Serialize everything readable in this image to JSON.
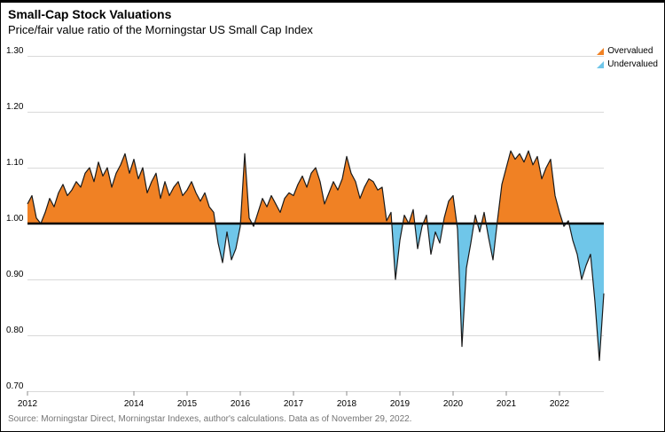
{
  "title": "Small-Cap Stock Valuations",
  "subtitle": "Price/fair value ratio of the Morningstar US Small Cap Index",
  "source": "Source: Morningstar Direct, Morningstar Indexes, author's calculations. Data as of November 29, 2022.",
  "chart_data": {
    "type": "area",
    "title": "Small-Cap Stock Valuations",
    "subtitle": "Price/fair value ratio of the Morningstar US Small Cap Index",
    "baseline": 1.0,
    "ylim": [
      0.7,
      1.3
    ],
    "yticks": [
      0.7,
      0.8,
      0.9,
      1.0,
      1.1,
      1.2,
      1.3
    ],
    "x_start_year": 2012,
    "x_points_per_year": 12,
    "x_tick_years": [
      2012,
      2014,
      2015,
      2016,
      2017,
      2018,
      2019,
      2020,
      2021,
      2022
    ],
    "grid": true,
    "legend_position": "top-right",
    "legend": [
      {
        "label": "Overvalued",
        "color": "#F08124"
      },
      {
        "label": "Undervalued",
        "color": "#6FC6E9"
      }
    ],
    "colors": {
      "overvalued": "#F08124",
      "undervalued": "#6FC6E9",
      "line": "#1a1a1a",
      "baseline": "#000000",
      "grid": "#d9d9d9",
      "tick": "#8c8c8c"
    },
    "series": [
      {
        "name": "Price/fair value ratio",
        "values": [
          1.035,
          1.05,
          1.01,
          1.0,
          1.02,
          1.045,
          1.03,
          1.055,
          1.07,
          1.05,
          1.06,
          1.075,
          1.065,
          1.09,
          1.1,
          1.075,
          1.11,
          1.085,
          1.1,
          1.065,
          1.09,
          1.105,
          1.125,
          1.09,
          1.115,
          1.08,
          1.1,
          1.055,
          1.075,
          1.09,
          1.045,
          1.075,
          1.05,
          1.065,
          1.075,
          1.05,
          1.06,
          1.075,
          1.055,
          1.04,
          1.055,
          1.03,
          1.02,
          0.965,
          0.93,
          0.985,
          0.935,
          0.955,
          0.995,
          1.125,
          1.01,
          0.995,
          1.02,
          1.045,
          1.03,
          1.05,
          1.035,
          1.02,
          1.045,
          1.055,
          1.05,
          1.07,
          1.085,
          1.065,
          1.09,
          1.1,
          1.075,
          1.035,
          1.055,
          1.075,
          1.06,
          1.08,
          1.12,
          1.09,
          1.075,
          1.045,
          1.065,
          1.08,
          1.075,
          1.06,
          1.065,
          1.005,
          1.02,
          0.9,
          0.97,
          1.015,
          1.0,
          1.025,
          0.955,
          0.995,
          1.015,
          0.945,
          0.985,
          0.965,
          1.01,
          1.04,
          1.05,
          0.99,
          0.78,
          0.92,
          0.965,
          1.015,
          0.985,
          1.02,
          0.975,
          0.935,
          1.005,
          1.07,
          1.1,
          1.13,
          1.115,
          1.125,
          1.11,
          1.13,
          1.105,
          1.12,
          1.08,
          1.1,
          1.115,
          1.05,
          1.02,
          0.995,
          1.005,
          0.97,
          0.945,
          0.9,
          0.925,
          0.945,
          0.86,
          0.755,
          0.875
        ]
      }
    ]
  }
}
